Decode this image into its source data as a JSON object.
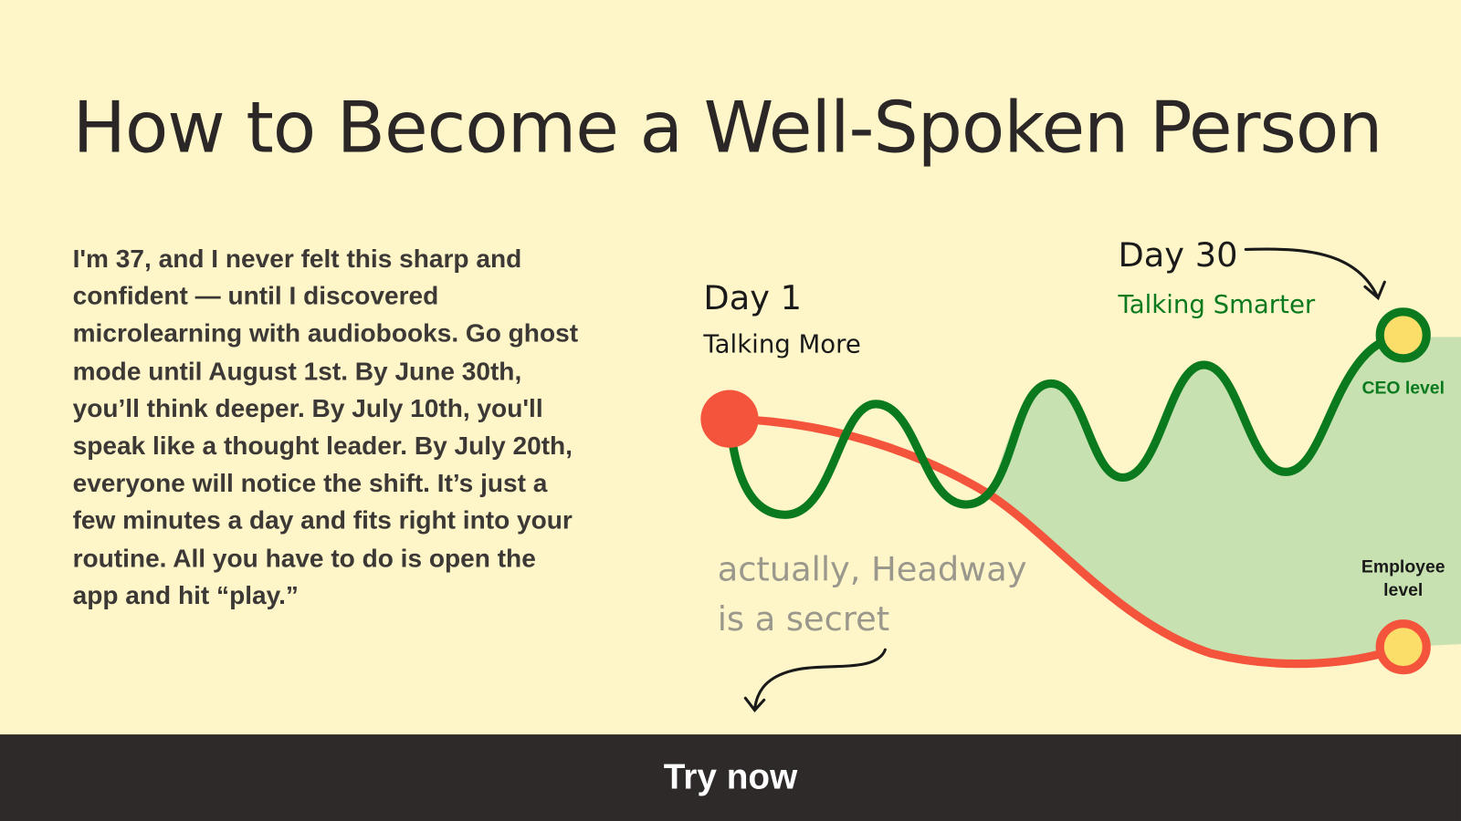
{
  "title": "How to Become a Well-Spoken Person",
  "body": "I'm 37, and I never felt this sharp and confident — until I discovered microlearning with audiobooks. Go ghost mode until August 1st. By June 30th, you’ll think deeper. By July 10th, you'll speak like a thought leader. By July 20th, everyone will notice the shift. It’s just a few minutes a day and fits right into your routine. All you have to do is open the app and hit “play.”",
  "chart": {
    "day1": "Day 1",
    "day1_sub": "Talking More",
    "day30": "Day 30",
    "day30_sub": "Talking Smarter",
    "ceo_level": "CEO level",
    "employee_level": "Employee level",
    "note_line1": "actually, Headway",
    "note_line2": "is a secret"
  },
  "colors": {
    "background": "#fef6c8",
    "green": "#0b7a1f",
    "red": "#f4543c",
    "fill": "#c7e1b0",
    "yellow": "#fbdd6a",
    "cta": "#2d2a29"
  },
  "cta": {
    "label": "Try now"
  }
}
